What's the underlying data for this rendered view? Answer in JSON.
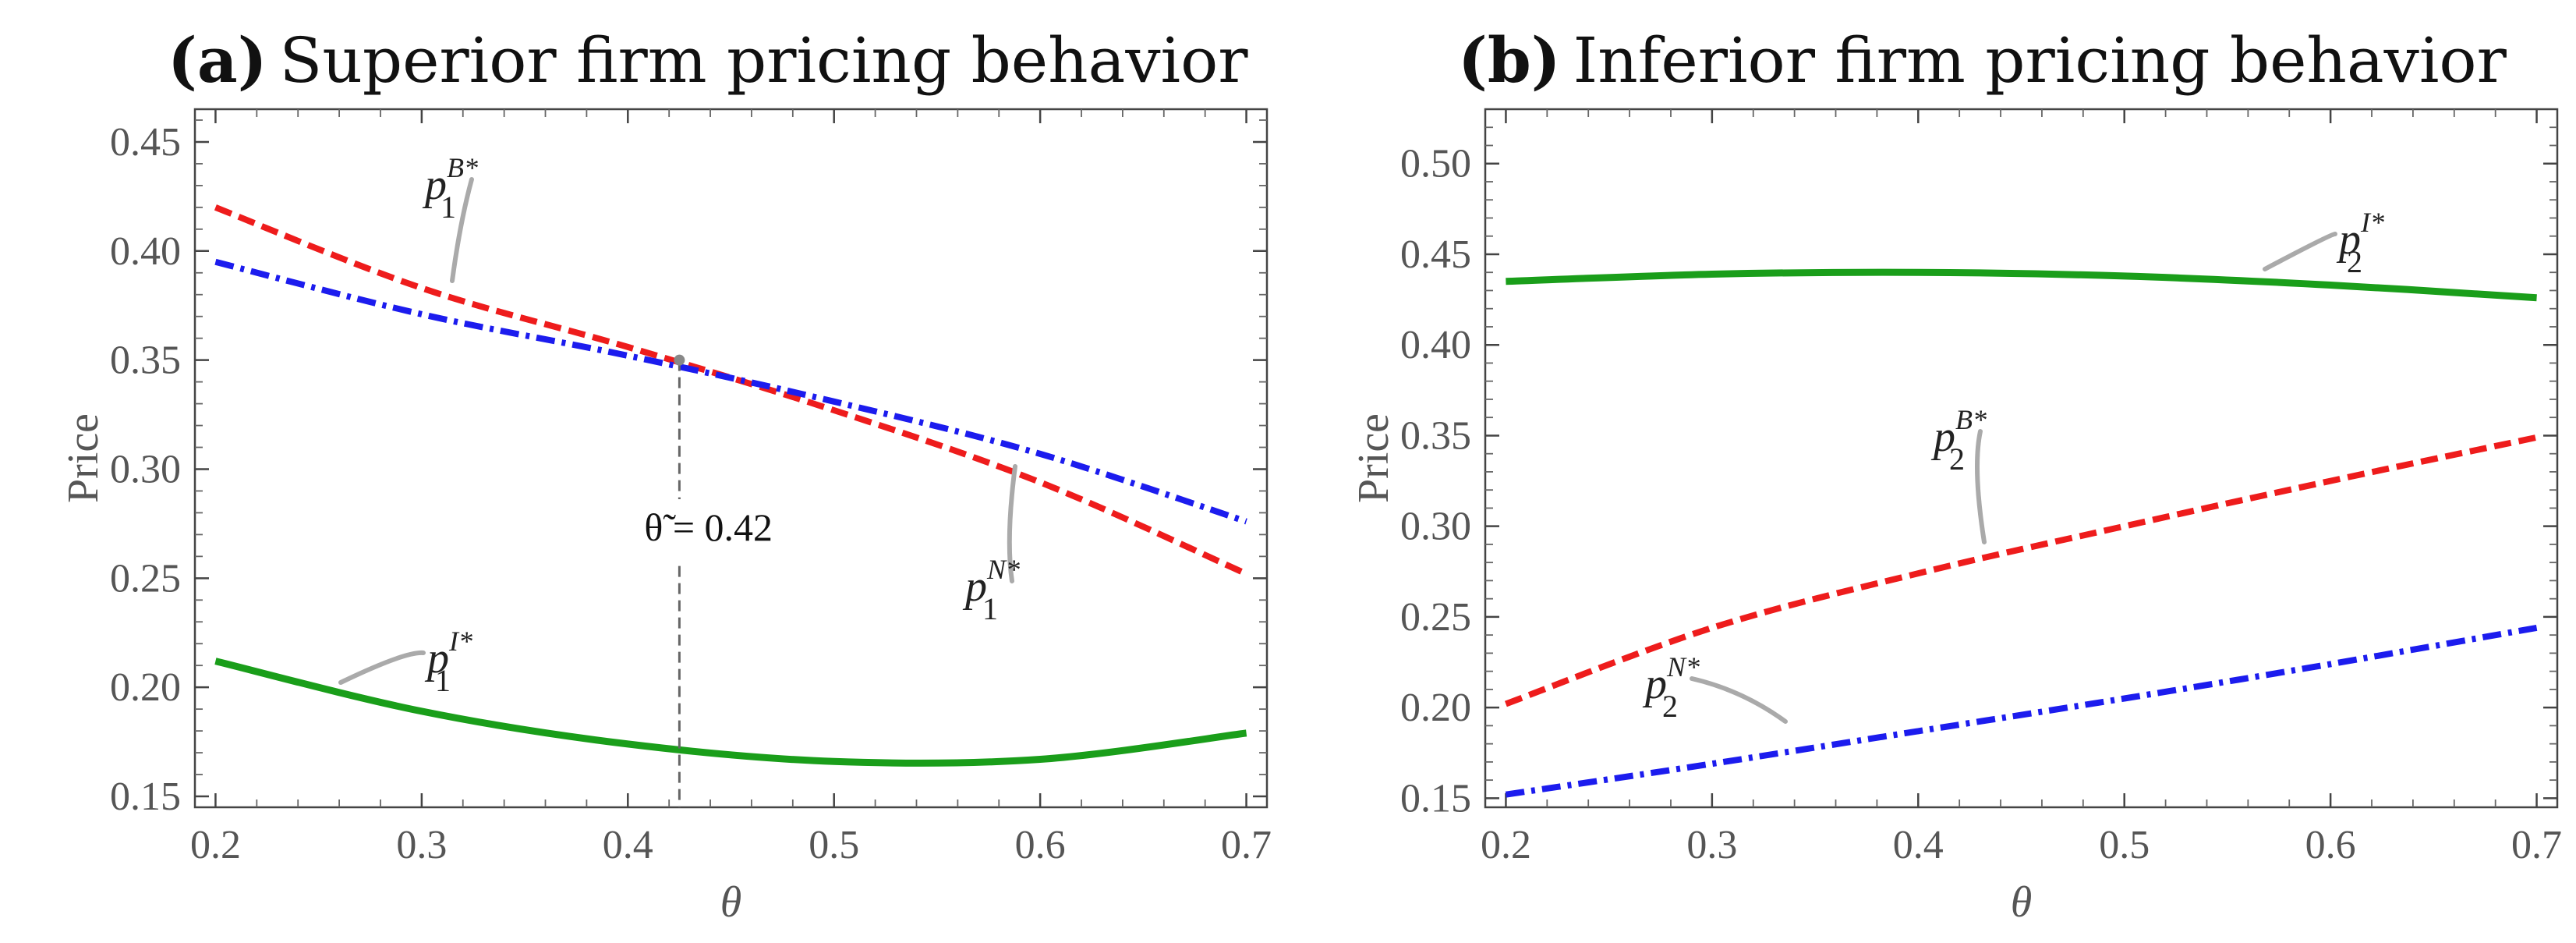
{
  "chart_data": [
    {
      "type": "line",
      "panel": "(a)",
      "title": "Superior firm pricing behavior",
      "xlabel": "θ",
      "ylabel": "Price",
      "xlim": [
        0.19,
        0.71
      ],
      "ylim": [
        0.145,
        0.465
      ],
      "xticks": [
        "0.2",
        "0.3",
        "0.4",
        "0.5",
        "0.6",
        "0.7"
      ],
      "yticks": [
        "0.15",
        "0.20",
        "0.25",
        "0.30",
        "0.35",
        "0.40",
        "0.45"
      ],
      "x": [
        0.2,
        0.3,
        0.4,
        0.5,
        0.6,
        0.7
      ],
      "series": [
        {
          "name": "p1B*",
          "label_base": "p",
          "label_sub": "1",
          "label_sup": "B*",
          "color": "#ee1c1c",
          "style": "dashed",
          "values": [
            0.42,
            0.383,
            0.356,
            0.327,
            0.294,
            0.252
          ]
        },
        {
          "name": "p1N*",
          "label_base": "p",
          "label_sub": "1",
          "label_sup": "N*",
          "color": "#1c1cee",
          "style": "dashdot",
          "values": [
            0.395,
            0.371,
            0.352,
            0.331,
            0.307,
            0.276
          ]
        },
        {
          "name": "p1I*",
          "label_base": "p",
          "label_sub": "1",
          "label_sup": "I*",
          "color": "#1a9e1a",
          "style": "solid",
          "values": [
            0.212,
            0.189,
            0.174,
            0.166,
            0.167,
            0.179
          ]
        }
      ],
      "annotation": {
        "text": "θ̃ = 0.42",
        "x": 0.425,
        "y": 0.35
      }
    },
    {
      "type": "line",
      "panel": "(b)",
      "title": "Inferior firm pricing behavior",
      "xlabel": "θ",
      "ylabel": "Price",
      "xlim": [
        0.19,
        0.71
      ],
      "ylim": [
        0.145,
        0.53
      ],
      "xticks": [
        "0.2",
        "0.3",
        "0.4",
        "0.5",
        "0.6",
        "0.7"
      ],
      "yticks": [
        "0.15",
        "0.20",
        "0.25",
        "0.30",
        "0.35",
        "0.40",
        "0.45",
        "0.50"
      ],
      "x": [
        0.2,
        0.3,
        0.4,
        0.5,
        0.6,
        0.7
      ],
      "series": [
        {
          "name": "p2I*",
          "label_base": "p",
          "label_sub": "2",
          "label_sup": "I*",
          "color": "#1a9e1a",
          "style": "solid",
          "values": [
            0.435,
            0.439,
            0.44,
            0.438,
            0.433,
            0.426
          ]
        },
        {
          "name": "p2B*",
          "label_base": "p",
          "label_sub": "2",
          "label_sup": "B*",
          "color": "#ee1c1c",
          "style": "dashed",
          "values": [
            0.202,
            0.244,
            0.274,
            0.3,
            0.325,
            0.349
          ]
        },
        {
          "name": "p2N*",
          "label_base": "p",
          "label_sub": "2",
          "label_sup": "N*",
          "color": "#1c1cee",
          "style": "dashdot",
          "values": [
            0.152,
            0.169,
            0.187,
            0.205,
            0.224,
            0.244
          ]
        }
      ]
    }
  ]
}
